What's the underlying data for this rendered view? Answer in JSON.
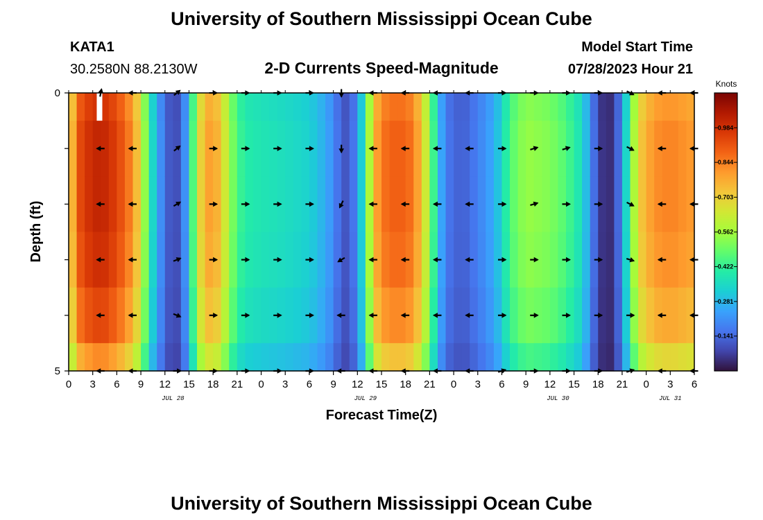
{
  "page": {
    "title_top": "University of Southern Mississippi Ocean Cube",
    "title_bottom": "University of Southern Mississippi Ocean Cube"
  },
  "header": {
    "station": "KATA1",
    "coords": "30.2580N  88.2130W",
    "plot_title": "2-D Currents Speed-Magnitude",
    "model_label": "Model Start Time",
    "model_time": "07/28/2023 Hour 21"
  },
  "chart_data": {
    "type": "heatmap",
    "title": "2-D Currents Speed-Magnitude",
    "xlabel": "Forecast Time(Z)",
    "ylabel": "Depth (ft)",
    "x_tick_labels": [
      "0",
      "3",
      "6",
      "9",
      "12",
      "15",
      "18",
      "21",
      "0",
      "3",
      "6",
      "9",
      "12",
      "15",
      "18",
      "21",
      "0",
      "3",
      "6",
      "9",
      "12",
      "15",
      "18",
      "21",
      "0",
      "3",
      "6"
    ],
    "x_hours": [
      0,
      3,
      6,
      9,
      12,
      15,
      18,
      21,
      24,
      27,
      30,
      33,
      36,
      39,
      42,
      45,
      48,
      51,
      54,
      57,
      60,
      63,
      66,
      69,
      72,
      75,
      78
    ],
    "xlim": [
      0,
      78
    ],
    "date_labels": [
      {
        "label": "JUL 28",
        "hour": 13
      },
      {
        "label": "JUL 29",
        "hour": 37
      },
      {
        "label": "JUL 30",
        "hour": 61
      },
      {
        "label": "JUL 31",
        "hour": 75
      }
    ],
    "y_tick_labels": [
      "0",
      "5"
    ],
    "ylim": [
      0,
      5
    ],
    "colorbar": {
      "unit": "Knots",
      "range": [
        0.0,
        1.125
      ],
      "ticks": [
        "0.984",
        "0.844",
        "0.703",
        "0.562",
        "0.422",
        "0.281",
        "0.141"
      ],
      "tick_values": [
        0.984,
        0.844,
        0.703,
        0.562,
        0.422,
        0.281,
        0.141
      ],
      "colors": [
        "#30123b",
        "#4145ab",
        "#4675ed",
        "#39a2fc",
        "#1bcfd4",
        "#24eca6",
        "#61fc6c",
        "#a4fc3b",
        "#d1e834",
        "#f3c63a",
        "#fe9b2d",
        "#f36315",
        "#d93806",
        "#b11901",
        "#7a0403"
      ]
    },
    "speed_profile_knots": [
      {
        "hour": 0,
        "speed": 0.62
      },
      {
        "hour": 1,
        "speed": 0.9
      },
      {
        "hour": 2,
        "speed": 0.97
      },
      {
        "hour": 4,
        "speed": 1.02
      },
      {
        "hour": 6,
        "speed": 0.95
      },
      {
        "hour": 8,
        "speed": 0.82
      },
      {
        "hour": 9,
        "speed": 0.66
      },
      {
        "hour": 10,
        "speed": 0.42
      },
      {
        "hour": 11,
        "speed": 0.26
      },
      {
        "hour": 12,
        "speed": 0.15
      },
      {
        "hour": 13,
        "speed": 0.08
      },
      {
        "hour": 14,
        "speed": 0.12
      },
      {
        "hour": 15,
        "speed": 0.3
      },
      {
        "hour": 16,
        "speed": 0.62
      },
      {
        "hour": 17,
        "speed": 0.78
      },
      {
        "hour": 18,
        "speed": 0.8
      },
      {
        "hour": 19,
        "speed": 0.72
      },
      {
        "hour": 20,
        "speed": 0.56
      },
      {
        "hour": 21,
        "speed": 0.45
      },
      {
        "hour": 22,
        "speed": 0.4
      },
      {
        "hour": 24,
        "speed": 0.38
      },
      {
        "hour": 27,
        "speed": 0.36
      },
      {
        "hour": 30,
        "speed": 0.33
      },
      {
        "hour": 32,
        "speed": 0.26
      },
      {
        "hour": 33,
        "speed": 0.2
      },
      {
        "hour": 34,
        "speed": 0.12
      },
      {
        "hour": 35,
        "speed": 0.1
      },
      {
        "hour": 36,
        "speed": 0.22
      },
      {
        "hour": 37,
        "speed": 0.42
      },
      {
        "hour": 38,
        "speed": 0.74
      },
      {
        "hour": 39,
        "speed": 0.86
      },
      {
        "hour": 41,
        "speed": 0.9
      },
      {
        "hour": 43,
        "speed": 0.86
      },
      {
        "hour": 44,
        "speed": 0.72
      },
      {
        "hour": 45,
        "speed": 0.55
      },
      {
        "hour": 46,
        "speed": 0.32
      },
      {
        "hour": 47,
        "speed": 0.17
      },
      {
        "hour": 49,
        "speed": 0.12
      },
      {
        "hour": 51,
        "speed": 0.18
      },
      {
        "hour": 53,
        "speed": 0.26
      },
      {
        "hour": 54,
        "speed": 0.34
      },
      {
        "hour": 55,
        "speed": 0.46
      },
      {
        "hour": 57,
        "speed": 0.55
      },
      {
        "hour": 60,
        "speed": 0.52
      },
      {
        "hour": 62,
        "speed": 0.46
      },
      {
        "hour": 64,
        "speed": 0.36
      },
      {
        "hour": 65,
        "speed": 0.22
      },
      {
        "hour": 66,
        "speed": 0.08
      },
      {
        "hour": 67,
        "speed": 0.03
      },
      {
        "hour": 68,
        "speed": 0.06
      },
      {
        "hour": 69,
        "speed": 0.22
      },
      {
        "hour": 70,
        "speed": 0.46
      },
      {
        "hour": 71,
        "speed": 0.7
      },
      {
        "hour": 73,
        "speed": 0.82
      },
      {
        "hour": 75,
        "speed": 0.84
      },
      {
        "hour": 78,
        "speed": 0.8
      }
    ],
    "arrow_depth_rows_ft": [
      0,
      1,
      2,
      3,
      4,
      5
    ],
    "arrows": [
      {
        "hour": 4,
        "dir": [
          [
            0.2,
            -1
          ],
          [
            -1,
            0
          ],
          [
            -1,
            0
          ],
          [
            -1,
            0
          ],
          [
            -1,
            0
          ],
          [
            -1,
            0
          ]
        ]
      },
      {
        "hour": 8,
        "dir": [
          [
            -1,
            0
          ],
          [
            -1,
            0
          ],
          [
            -1,
            0
          ],
          [
            -1,
            0
          ],
          [
            -1,
            0
          ],
          [
            -1,
            0
          ]
        ]
      },
      {
        "hour": 13.5,
        "dir": [
          [
            1,
            -0.8
          ],
          [
            1,
            -0.8
          ],
          [
            1,
            -0.6
          ],
          [
            1,
            -0.4
          ],
          [
            1,
            0.4
          ],
          [
            1,
            0
          ]
        ]
      },
      {
        "hour": 18,
        "dir": [
          [
            1,
            0
          ],
          [
            1,
            0
          ],
          [
            1,
            0
          ],
          [
            1,
            0
          ],
          [
            1,
            0
          ],
          [
            1,
            0
          ]
        ]
      },
      {
        "hour": 22,
        "dir": [
          [
            1,
            0
          ],
          [
            1,
            0
          ],
          [
            1,
            0
          ],
          [
            1,
            0
          ],
          [
            1,
            0
          ],
          [
            1,
            0
          ]
        ]
      },
      {
        "hour": 26,
        "dir": [
          [
            1,
            0
          ],
          [
            1,
            0
          ],
          [
            1,
            0
          ],
          [
            1,
            0
          ],
          [
            1,
            0
          ],
          [
            1,
            0
          ]
        ]
      },
      {
        "hour": 30,
        "dir": [
          [
            1,
            0
          ],
          [
            1,
            0
          ],
          [
            1,
            0
          ],
          [
            1,
            0
          ],
          [
            1,
            0
          ],
          [
            1,
            0
          ]
        ]
      },
      {
        "hour": 34,
        "dir": [
          [
            0,
            1
          ],
          [
            0,
            1
          ],
          [
            -0.5,
            1
          ],
          [
            -1,
            0.6
          ],
          [
            -1,
            0
          ],
          [
            -1,
            0
          ]
        ]
      },
      {
        "hour": 38,
        "dir": [
          [
            -1,
            0
          ],
          [
            -1,
            0
          ],
          [
            -1,
            0
          ],
          [
            -1,
            0
          ],
          [
            -1,
            0
          ],
          [
            -1,
            0
          ]
        ]
      },
      {
        "hour": 42,
        "dir": [
          [
            -1,
            0
          ],
          [
            -1,
            0
          ],
          [
            -1,
            0
          ],
          [
            -1,
            0
          ],
          [
            -1,
            0
          ],
          [
            -1,
            0
          ]
        ]
      },
      {
        "hour": 46,
        "dir": [
          [
            -1,
            0
          ],
          [
            -1,
            0
          ],
          [
            -1,
            0
          ],
          [
            -1,
            0
          ],
          [
            -1,
            0
          ],
          [
            -1,
            0
          ]
        ]
      },
      {
        "hour": 50,
        "dir": [
          [
            -1,
            0
          ],
          [
            -1,
            0
          ],
          [
            -1,
            0
          ],
          [
            -1,
            0
          ],
          [
            -1,
            0
          ],
          [
            -1,
            0
          ]
        ]
      },
      {
        "hour": 54,
        "dir": [
          [
            1,
            0
          ],
          [
            1,
            0
          ],
          [
            1,
            0
          ],
          [
            1,
            0
          ],
          [
            1,
            0
          ],
          [
            1,
            -0.3
          ]
        ]
      },
      {
        "hour": 58,
        "dir": [
          [
            1,
            0
          ],
          [
            1,
            -0.3
          ],
          [
            1,
            -0.3
          ],
          [
            1,
            0
          ],
          [
            1,
            0
          ],
          [
            1,
            0
          ]
        ]
      },
      {
        "hour": 62,
        "dir": [
          [
            1,
            0
          ],
          [
            1,
            -0.3
          ],
          [
            1,
            0
          ],
          [
            1,
            0
          ],
          [
            1,
            0
          ],
          [
            1,
            0
          ]
        ]
      },
      {
        "hour": 66,
        "dir": [
          [
            1,
            0
          ],
          [
            1,
            0
          ],
          [
            1,
            0
          ],
          [
            1,
            0
          ],
          [
            1,
            0
          ],
          [
            1,
            0
          ]
        ]
      },
      {
        "hour": 70,
        "dir": [
          [
            1,
            0.5
          ],
          [
            1,
            0.5
          ],
          [
            1,
            0.5
          ],
          [
            1,
            0.3
          ],
          [
            1,
            0
          ],
          [
            1,
            -0.3
          ]
        ]
      },
      {
        "hour": 74,
        "dir": [
          [
            -1,
            0
          ],
          [
            -1,
            0
          ],
          [
            -1,
            0
          ],
          [
            -1,
            0
          ],
          [
            -1,
            0
          ],
          [
            -1,
            0
          ]
        ]
      },
      {
        "hour": 78,
        "dir": [
          [
            -1,
            0
          ],
          [
            -1,
            0
          ],
          [
            -1,
            0
          ],
          [
            -1,
            0
          ],
          [
            -1,
            0
          ],
          [
            -1,
            0
          ]
        ]
      }
    ]
  }
}
